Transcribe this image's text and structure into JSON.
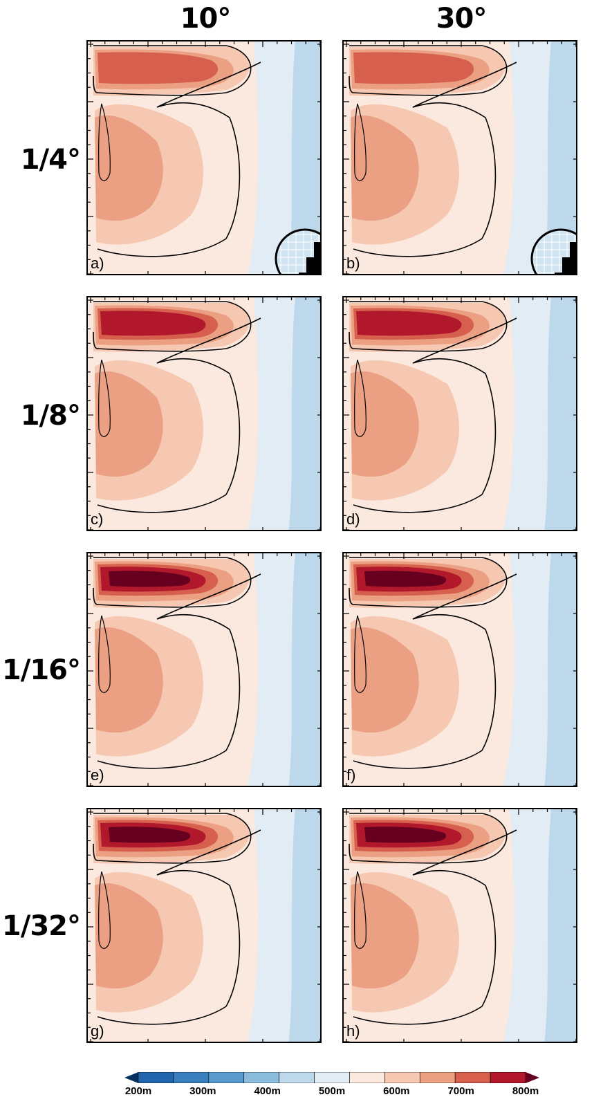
{
  "column_headers": [
    "10°",
    "30°"
  ],
  "row_headers": [
    "1/4°",
    "1/8°",
    "1/16°",
    "1/32°"
  ],
  "panel_labels": [
    "a)",
    "b)",
    "c)",
    "d)",
    "e)",
    "f)",
    "g)",
    "h)"
  ],
  "colorbar": {
    "levels": [
      200,
      250,
      300,
      350,
      400,
      450,
      500,
      550,
      600,
      650,
      700,
      750,
      800
    ],
    "tick_labels": [
      "200m",
      "300m",
      "400m",
      "500m",
      "600m",
      "700m",
      "800m"
    ],
    "colors": [
      "#053061",
      "#2166ac",
      "#3a7fbd",
      "#5a9bcc",
      "#8cbcdc",
      "#bcd8ea",
      "#e1ecf4",
      "#fbe9df",
      "#f6c8b1",
      "#eba083",
      "#d6604d",
      "#b2182b",
      "#67001f"
    ],
    "extend": "both"
  },
  "chart_data": {
    "type": "heatmap",
    "title": "",
    "columns": [
      "10°",
      "30°"
    ],
    "rows": [
      "1/4°",
      "1/8°",
      "1/16°",
      "1/32°"
    ],
    "variable_units": "m",
    "panels": [
      {
        "label": "a)",
        "resolution": "1/4°",
        "angle": "10°",
        "max_depth": 680,
        "inset": "staircase"
      },
      {
        "label": "b)",
        "resolution": "1/4°",
        "angle": "30°",
        "max_depth": 680,
        "inset": "staircase"
      },
      {
        "label": "c)",
        "resolution": "1/8°",
        "angle": "10°",
        "max_depth": 760
      },
      {
        "label": "d)",
        "resolution": "1/8°",
        "angle": "30°",
        "max_depth": 760
      },
      {
        "label": "e)",
        "resolution": "1/16°",
        "angle": "10°",
        "max_depth": 790
      },
      {
        "label": "f)",
        "resolution": "1/16°",
        "angle": "30°",
        "max_depth": 780
      },
      {
        "label": "g)",
        "resolution": "1/32°",
        "angle": "10°",
        "max_depth": 800
      },
      {
        "label": "h)",
        "resolution": "1/32°",
        "angle": "30°",
        "max_depth": 800
      }
    ]
  }
}
